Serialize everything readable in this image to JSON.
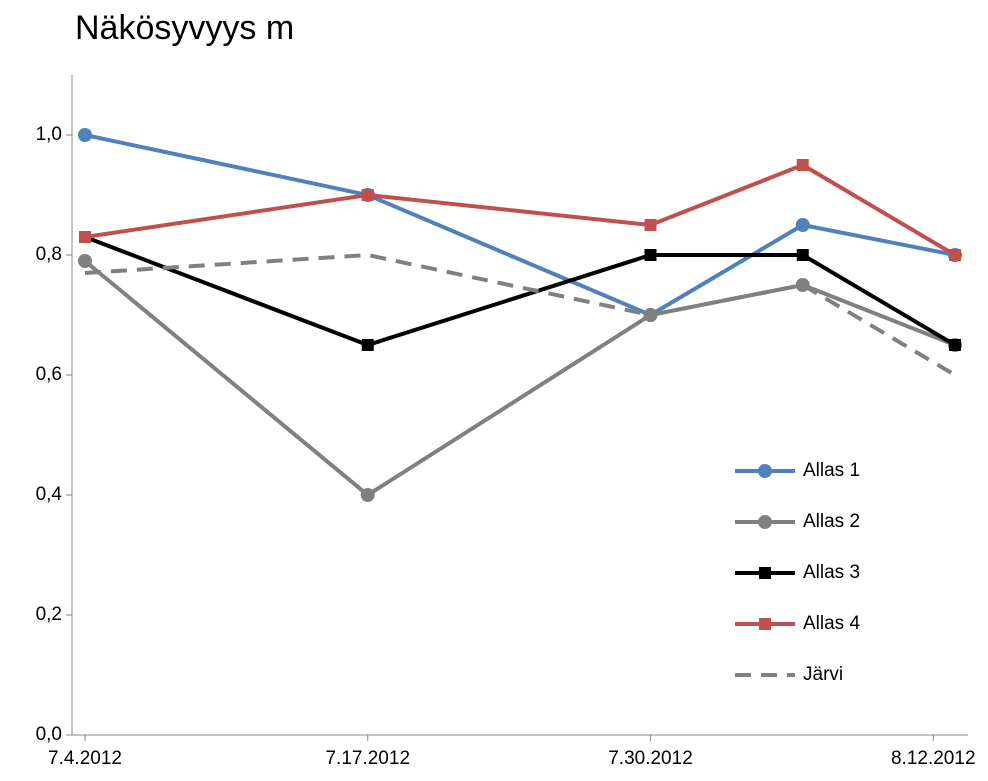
{
  "chart_data": {
    "type": "line",
    "title": "Näkösyvyys m",
    "x": [
      "2012-07-04",
      "2012-07-17",
      "2012-07-30",
      "2012-08-06",
      "2012-08-13"
    ],
    "xlim": [
      "2012-07-04",
      "2012-08-13"
    ],
    "xticks": [
      {
        "value": "2012-07-04",
        "label": "7.4.2012"
      },
      {
        "value": "2012-07-17",
        "label": "7.17.2012"
      },
      {
        "value": "2012-07-30",
        "label": "7.30.2012"
      },
      {
        "value": "2012-08-12",
        "label": "8.12.2012"
      }
    ],
    "ylim": [
      0,
      1.1
    ],
    "yticks": [
      {
        "value": 0,
        "label": "0,0"
      },
      {
        "value": 0.2,
        "label": "0,2"
      },
      {
        "value": 0.4,
        "label": "0,4"
      },
      {
        "value": 0.6,
        "label": "0,6"
      },
      {
        "value": 0.8,
        "label": "0,8"
      },
      {
        "value": 1.0,
        "label": "1,0"
      }
    ],
    "grid": false,
    "legend": "right",
    "series": [
      {
        "name": "Allas 1",
        "color": "#4f81bd",
        "marker": "circle",
        "values": [
          1.0,
          0.9,
          0.7,
          0.85,
          0.8
        ]
      },
      {
        "name": "Allas 2",
        "color": "#808080",
        "marker": "circle",
        "values": [
          0.79,
          0.4,
          0.7,
          0.75,
          0.65
        ]
      },
      {
        "name": "Allas 3",
        "color": "#000000",
        "marker": "square",
        "values": [
          0.83,
          0.65,
          0.8,
          0.8,
          0.65
        ]
      },
      {
        "name": "Allas 4",
        "color": "#c0504d",
        "marker": "square",
        "values": [
          0.83,
          0.9,
          0.85,
          0.95,
          0.8
        ]
      },
      {
        "name": "Järvi",
        "color": "#808080",
        "marker": "none",
        "dash": true,
        "values": [
          0.77,
          0.8,
          0.7,
          0.75,
          0.6
        ]
      }
    ]
  }
}
